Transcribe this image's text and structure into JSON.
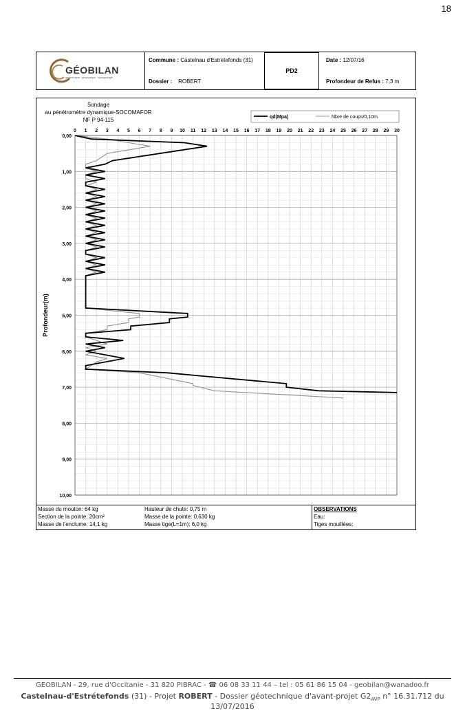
{
  "page_number": "18",
  "header": {
    "logo_text": "GÉOBILAN",
    "logo_sub": "géotechnique · géophysique · hydrogéologie",
    "commune_label": "Commune :",
    "commune_value": "Castelnau d'Estretefonds (31)",
    "dossier_label": "Dossier :",
    "dossier_value": "ROBERT",
    "pd": "PD2",
    "date_label": "Date :",
    "date_value": "12/07/16",
    "refus_label": "Profondeur de Refus :",
    "refus_value": "7,3 m"
  },
  "chart_data": {
    "type": "line",
    "title_lines": [
      "Sondage",
      "au pénétromètre dynamique-SOCOMAFOR",
      "NF P 94-115"
    ],
    "ylabel": "Profondeur(m)",
    "xlabel": "",
    "xlim": [
      0,
      30
    ],
    "ylim": [
      10,
      0
    ],
    "x_ticks": [
      "0",
      "1",
      "2",
      "3",
      "4",
      "5",
      "6",
      "7",
      "8",
      "9",
      "10",
      "11",
      "12",
      "13",
      "14",
      "15",
      "16",
      "17",
      "18",
      "19",
      "20",
      "21",
      "22",
      "23",
      "24",
      "25",
      "26",
      "27",
      "28",
      "29",
      "30"
    ],
    "y_ticks": [
      "0,00",
      "1,00",
      "2,00",
      "3,00",
      "4,00",
      "5,00",
      "6,00",
      "7,00",
      "8,00",
      "9,00",
      "10,00"
    ],
    "grid": true,
    "legend_position": "top-right",
    "series": [
      {
        "name": "qd(Mpa)",
        "color": "#000000",
        "points": [
          [
            0,
            0
          ],
          [
            1.5,
            0.1
          ],
          [
            10.2,
            0.2
          ],
          [
            12.3,
            0.3
          ],
          [
            3.5,
            0.7
          ],
          [
            2.8,
            0.8
          ],
          [
            1,
            0.9
          ],
          [
            2.8,
            1.0
          ],
          [
            1,
            1.1
          ],
          [
            2.8,
            1.2
          ],
          [
            1,
            1.3
          ],
          [
            1,
            1.4
          ],
          [
            2.8,
            1.5
          ],
          [
            1,
            1.6
          ],
          [
            2.8,
            1.7
          ],
          [
            1,
            1.8
          ],
          [
            2.8,
            1.9
          ],
          [
            1,
            2.0
          ],
          [
            2.8,
            2.1
          ],
          [
            1,
            2.2
          ],
          [
            2.8,
            2.3
          ],
          [
            1,
            2.4
          ],
          [
            2.8,
            2.5
          ],
          [
            1,
            2.6
          ],
          [
            2.8,
            2.7
          ],
          [
            1,
            2.8
          ],
          [
            2.8,
            2.9
          ],
          [
            1,
            3.0
          ],
          [
            2.8,
            3.1
          ],
          [
            1,
            3.2
          ],
          [
            1,
            3.3
          ],
          [
            2.8,
            3.4
          ],
          [
            1,
            3.5
          ],
          [
            2.8,
            3.6
          ],
          [
            1,
            3.7
          ],
          [
            2.8,
            3.8
          ],
          [
            1,
            3.9
          ],
          [
            1,
            4.0
          ],
          [
            1,
            4.8
          ],
          [
            10.5,
            4.95
          ],
          [
            10.5,
            5.05
          ],
          [
            8.8,
            5.1
          ],
          [
            8.8,
            5.2
          ],
          [
            5.2,
            5.3
          ],
          [
            5.2,
            5.4
          ],
          [
            1,
            5.5
          ],
          [
            1,
            5.6
          ],
          [
            4.5,
            5.7
          ],
          [
            1,
            5.8
          ],
          [
            2.8,
            5.9
          ],
          [
            1,
            6.0
          ],
          [
            2.8,
            6.1
          ],
          [
            4.6,
            6.2
          ],
          [
            1,
            6.4
          ],
          [
            1,
            6.5
          ],
          [
            8.6,
            6.6
          ],
          [
            12.2,
            6.7
          ],
          [
            19.7,
            6.9
          ],
          [
            19.7,
            7.0
          ],
          [
            22.7,
            7.1
          ],
          [
            30,
            7.15
          ]
        ]
      },
      {
        "name": "Nbre de coups/0,10m",
        "color": "#909090",
        "points": [
          [
            0,
            0
          ],
          [
            3,
            0.1
          ],
          [
            5,
            0.2
          ],
          [
            7,
            0.3
          ],
          [
            5,
            0.4
          ],
          [
            3,
            0.5
          ],
          [
            2,
            0.7
          ],
          [
            1,
            0.8
          ],
          [
            1,
            0.9
          ],
          [
            2,
            1.0
          ],
          [
            1,
            1.1
          ],
          [
            1,
            1.2
          ],
          [
            2,
            1.3
          ],
          [
            1,
            1.4
          ],
          [
            2,
            1.5
          ],
          [
            1,
            1.6
          ],
          [
            2,
            1.7
          ],
          [
            1,
            1.8
          ],
          [
            2,
            1.9
          ],
          [
            1,
            2.0
          ],
          [
            2,
            2.1
          ],
          [
            1,
            2.2
          ],
          [
            2,
            2.3
          ],
          [
            1,
            2.4
          ],
          [
            2,
            2.5
          ],
          [
            1,
            2.6
          ],
          [
            2,
            2.7
          ],
          [
            1,
            2.8
          ],
          [
            2,
            2.9
          ],
          [
            1,
            3.0
          ],
          [
            2,
            3.1
          ],
          [
            1,
            3.2
          ],
          [
            1,
            3.3
          ],
          [
            2,
            3.4
          ],
          [
            1,
            3.5
          ],
          [
            2,
            3.6
          ],
          [
            1,
            3.7
          ],
          [
            2,
            3.8
          ],
          [
            1,
            3.9
          ],
          [
            1,
            4.8
          ],
          [
            6,
            4.95
          ],
          [
            6,
            5.05
          ],
          [
            5,
            5.1
          ],
          [
            5,
            5.2
          ],
          [
            3,
            5.3
          ],
          [
            3,
            5.4
          ],
          [
            1,
            5.5
          ],
          [
            1,
            5.6
          ],
          [
            2,
            5.7
          ],
          [
            3,
            5.8
          ],
          [
            1,
            5.9
          ],
          [
            2,
            6.0
          ],
          [
            1,
            6.1
          ],
          [
            3,
            6.2
          ],
          [
            2,
            6.3
          ],
          [
            1,
            6.5
          ],
          [
            6,
            6.6
          ],
          [
            11,
            6.9
          ],
          [
            11,
            6.95
          ],
          [
            13,
            7.1
          ],
          [
            25,
            7.3
          ]
        ]
      }
    ]
  },
  "test_info": {
    "col1": [
      "Masse du mouton:  64 kg",
      "Section de la pointe: 20cm²",
      "Masse de l'enclume: 14,1 kg"
    ],
    "col2": [
      "Hauteur de chute: 0,75 m",
      "Masse de la pointe: 0,630 kg",
      "Masse tige(L=1m): 6,0 kg"
    ],
    "col3_title": "OBSERVATIONS",
    "col3": [
      "Eau:",
      "Tiges mouillées:"
    ]
  },
  "footer": {
    "line1": "GEOBILAN - 29, rue d'Occitanie - 31 820 PIBRAC - ☎ 06 08 33 11 44 – tel : 05 61 86 15 04 - geobilan@wanadoo.fr",
    "line2_a": "Castelnau-d'Estrétefonds",
    "line2_b": " (31) - Projet ",
    "line2_c": "ROBERT",
    "line2_d": " - Dossier géotechnique d'avant-projet G2",
    "line2_sub": "AVP",
    "line2_e": " n° 16.31.712 du 13/07/2016"
  }
}
